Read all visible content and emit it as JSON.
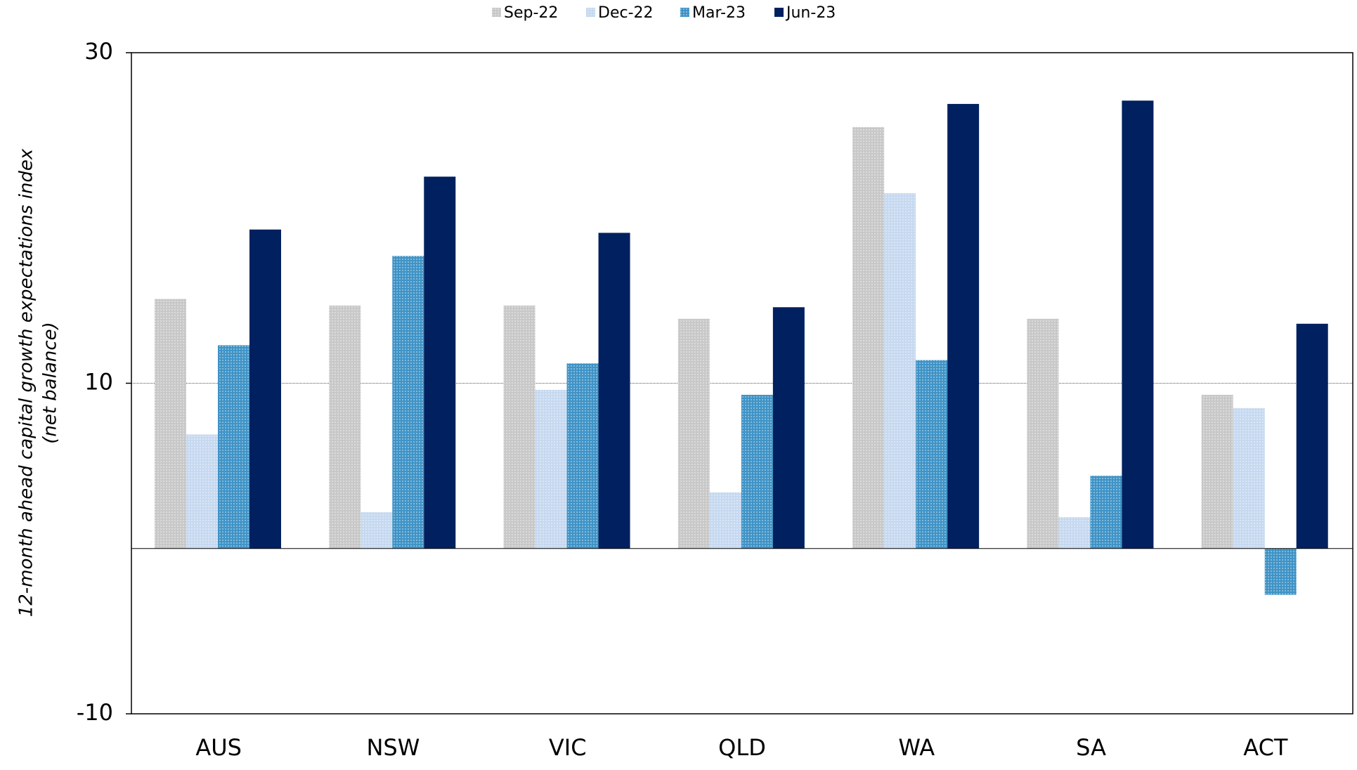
{
  "chart_data": {
    "type": "bar",
    "y_label": [
      "12-month ahead capital growth expectations index",
      "(net balance)"
    ],
    "categories": [
      "AUS",
      "NSW",
      "VIC",
      "QLD",
      "WA",
      "SA",
      "ACT"
    ],
    "series": [
      {
        "name": "Sep-22",
        "color": "#c8c8c8",
        "values": [
          15.1,
          14.7,
          14.7,
          13.9,
          25.5,
          13.9,
          9.3
        ]
      },
      {
        "name": "Dec-22",
        "color": "#c6d9f0",
        "values": [
          6.9,
          2.2,
          9.6,
          3.4,
          21.5,
          1.9,
          8.5
        ]
      },
      {
        "name": "Mar-23",
        "color": "#3f93c6",
        "values": [
          12.3,
          17.7,
          11.2,
          9.3,
          11.4,
          4.4,
          -2.8
        ]
      },
      {
        "name": "Jun-23",
        "color": "#002060",
        "values": [
          19.3,
          22.5,
          19.1,
          14.6,
          26.9,
          27.1,
          13.6
        ]
      }
    ],
    "ylim": [
      -10,
      30
    ],
    "yticks": [
      -10,
      10,
      30
    ],
    "grid": true
  }
}
